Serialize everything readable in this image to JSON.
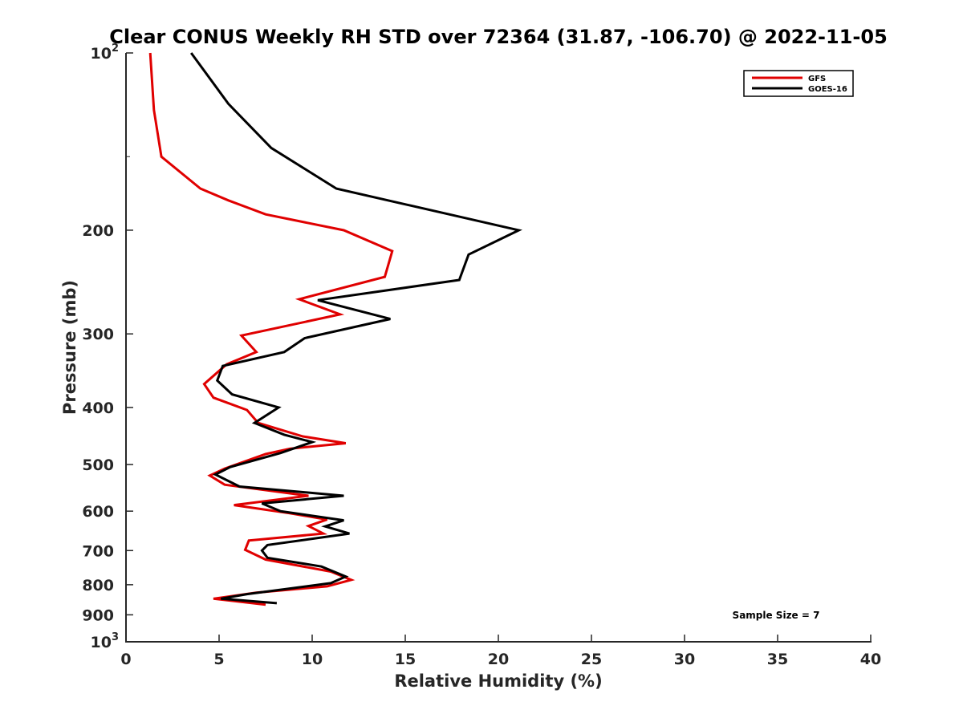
{
  "chart_data": {
    "type": "line",
    "title": "Clear CONUS Weekly RH STD over 72364 (31.87, -106.70) @ 2022-11-05",
    "xlabel": "Relative Humidity (%)",
    "ylabel": "Pressure (mb)",
    "xlim": [
      0,
      40
    ],
    "ylim": [
      100,
      1000
    ],
    "y_scale": "log",
    "y_reversed": true,
    "x_ticks": [
      "0",
      "5",
      "10",
      "15",
      "20",
      "25",
      "30",
      "35",
      "40"
    ],
    "y_ticks": [
      {
        "value": 100,
        "base": "10",
        "exp": "2"
      },
      {
        "value": 200,
        "label": "200"
      },
      {
        "value": 300,
        "label": "300"
      },
      {
        "value": 400,
        "label": "400"
      },
      {
        "value": 500,
        "label": "500"
      },
      {
        "value": 600,
        "label": "600"
      },
      {
        "value": 700,
        "label": "700"
      },
      {
        "value": 800,
        "label": "800"
      },
      {
        "value": 900,
        "label": "900"
      },
      {
        "value": 1000,
        "base": "10",
        "exp": "3"
      }
    ],
    "grid": false,
    "legend_position": "top-right",
    "annotation": "Sample Size = 7",
    "series": [
      {
        "name": "GFS",
        "color": "#e00000",
        "points": [
          [
            1.3,
            100
          ],
          [
            1.5,
            125
          ],
          [
            1.9,
            150
          ],
          [
            4.0,
            170
          ],
          [
            5.5,
            178
          ],
          [
            7.5,
            188
          ],
          [
            11.7,
            200
          ],
          [
            14.3,
            217
          ],
          [
            13.9,
            240
          ],
          [
            9.3,
            262
          ],
          [
            11.5,
            278
          ],
          [
            6.2,
            302
          ],
          [
            7.0,
            322
          ],
          [
            5.4,
            338
          ],
          [
            4.2,
            365
          ],
          [
            4.7,
            385
          ],
          [
            6.5,
            404
          ],
          [
            7.1,
            425
          ],
          [
            9.5,
            448
          ],
          [
            11.8,
            460
          ],
          [
            8.8,
            470
          ],
          [
            7.5,
            480
          ],
          [
            5.3,
            508
          ],
          [
            4.5,
            522
          ],
          [
            5.3,
            541
          ],
          [
            9.8,
            565
          ],
          [
            5.8,
            586
          ],
          [
            8.8,
            605
          ],
          [
            10.8,
            620
          ],
          [
            9.8,
            636
          ],
          [
            10.6,
            655
          ],
          [
            6.6,
            673
          ],
          [
            6.4,
            698
          ],
          [
            7.5,
            725
          ],
          [
            11.0,
            760
          ],
          [
            12.1,
            785
          ],
          [
            10.8,
            805
          ],
          [
            7.0,
            825
          ],
          [
            4.7,
            845
          ],
          [
            7.5,
            865
          ]
        ]
      },
      {
        "name": "GOES-16",
        "color": "#000000",
        "points": [
          [
            3.5,
            100
          ],
          [
            5.5,
            122
          ],
          [
            7.8,
            145
          ],
          [
            11.3,
            170
          ],
          [
            21.1,
            200
          ],
          [
            18.4,
            220
          ],
          [
            17.9,
            243
          ],
          [
            10.3,
            263
          ],
          [
            14.2,
            283
          ],
          [
            9.6,
            305
          ],
          [
            8.5,
            322
          ],
          [
            5.2,
            340
          ],
          [
            4.9,
            360
          ],
          [
            5.7,
            380
          ],
          [
            8.2,
            400
          ],
          [
            6.9,
            425
          ],
          [
            8.5,
            445
          ],
          [
            10.0,
            458
          ],
          [
            8.3,
            478
          ],
          [
            5.6,
            505
          ],
          [
            4.8,
            520
          ],
          [
            6.1,
            545
          ],
          [
            11.7,
            565
          ],
          [
            7.3,
            582
          ],
          [
            8.3,
            600
          ],
          [
            11.7,
            622
          ],
          [
            10.7,
            637
          ],
          [
            12.0,
            655
          ],
          [
            7.6,
            685
          ],
          [
            7.3,
            700
          ],
          [
            7.6,
            720
          ],
          [
            10.5,
            745
          ],
          [
            11.8,
            775
          ],
          [
            11.0,
            795
          ],
          [
            6.5,
            830
          ],
          [
            5.1,
            845
          ],
          [
            8.1,
            860
          ]
        ]
      }
    ]
  }
}
